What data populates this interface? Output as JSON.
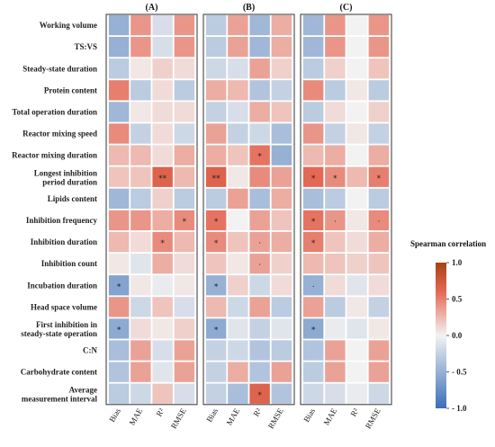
{
  "chart_data": {
    "type": "heatmap",
    "panels": [
      "(A)",
      "(B)",
      "(C)"
    ],
    "rows": [
      [
        "Working volume"
      ],
      [
        "TS:VS"
      ],
      [
        "Steady-state duration"
      ],
      [
        "Protein content"
      ],
      [
        "Total operation duration"
      ],
      [
        "Reactor mixing speed"
      ],
      [
        "Reactor mixing duration"
      ],
      [
        "Longest inhibition",
        "period duration"
      ],
      [
        "Lipids content"
      ],
      [
        "Inhibition frequency"
      ],
      [
        "Inhibition duration"
      ],
      [
        "Inhibition count"
      ],
      [
        "Incubation duration"
      ],
      [
        "Head space volume"
      ],
      [
        "First inhibition in",
        "steady-state operation"
      ],
      [
        "C:N"
      ],
      [
        "Carbohydrate content"
      ],
      [
        "Average",
        "measurement interval"
      ]
    ],
    "columns": [
      "Bias",
      "MAE",
      "R²",
      "RMSE"
    ],
    "values": [
      [
        [
          -0.5,
          0.4,
          -0.15,
          0.4
        ],
        [
          -0.5,
          0.4,
          -0.15,
          0.4
        ],
        [
          -0.3,
          0.05,
          0.15,
          0.1
        ],
        [
          0.5,
          -0.3,
          0.1,
          -0.3
        ],
        [
          -0.45,
          0.05,
          0.1,
          0.1
        ],
        [
          0.45,
          -0.25,
          0.1,
          -0.2
        ],
        [
          0.25,
          0.25,
          0.1,
          0.3
        ],
        [
          0.2,
          0.2,
          0.65,
          0.25
        ],
        [
          -0.45,
          -0.3,
          0.15,
          -0.3
        ],
        [
          0.4,
          0.4,
          0.3,
          0.45
        ],
        [
          0.25,
          0.1,
          0.45,
          0.25
        ],
        [
          0.05,
          -0.1,
          0.3,
          0.1
        ],
        [
          -0.6,
          0.05,
          -0.05,
          0.05
        ],
        [
          0.4,
          -0.2,
          0.2,
          -0.15
        ],
        [
          -0.55,
          0.1,
          0.05,
          0.15
        ],
        [
          -0.4,
          0.35,
          -0.15,
          0.35
        ],
        [
          -0.35,
          0.35,
          -0.1,
          0.35
        ],
        [
          -0.3,
          -0.2,
          0.2,
          -0.15
        ]
      ],
      [
        [
          -0.3,
          0.35,
          -0.45,
          0.3
        ],
        [
          -0.3,
          0.35,
          -0.45,
          0.3
        ],
        [
          -0.2,
          -0.15,
          0.35,
          0.15
        ],
        [
          0.3,
          0.25,
          -0.35,
          -0.25
        ],
        [
          -0.25,
          -0.15,
          0.3,
          0.2
        ],
        [
          0.35,
          -0.25,
          -0.2,
          -0.4
        ],
        [
          0.3,
          0.2,
          0.55,
          -0.5
        ],
        [
          0.65,
          0.05,
          0.45,
          0.35
        ],
        [
          -0.3,
          0.35,
          -0.4,
          0.3
        ],
        [
          0.55,
          0.0,
          0.35,
          0.2
        ],
        [
          0.45,
          0.2,
          0.35,
          0.3
        ],
        [
          0.2,
          0.05,
          0.35,
          0.15
        ],
        [
          -0.5,
          0.15,
          -0.2,
          0.1
        ],
        [
          0.25,
          -0.2,
          0.35,
          -0.3
        ],
        [
          -0.55,
          -0.1,
          -0.25,
          -0.1
        ],
        [
          -0.25,
          -0.2,
          -0.35,
          -0.3
        ],
        [
          -0.25,
          0.3,
          -0.35,
          0.35
        ],
        [
          -0.25,
          -0.4,
          0.65,
          -0.35
        ]
      ],
      [
        [
          -0.45,
          0.4,
          0.0,
          0.4
        ],
        [
          -0.45,
          0.4,
          0.0,
          0.4
        ],
        [
          -0.3,
          0.15,
          0.0,
          0.2
        ],
        [
          0.45,
          -0.3,
          0.05,
          -0.3
        ],
        [
          -0.3,
          0.1,
          0.0,
          0.15
        ],
        [
          0.4,
          -0.25,
          0.05,
          -0.25
        ],
        [
          0.25,
          0.3,
          0.0,
          0.3
        ],
        [
          0.6,
          0.45,
          0.25,
          0.5
        ],
        [
          -0.4,
          -0.3,
          0.0,
          -0.3
        ],
        [
          0.55,
          0.4,
          0.05,
          0.45
        ],
        [
          0.5,
          0.2,
          0.1,
          0.3
        ],
        [
          0.25,
          0.2,
          0.15,
          0.2
        ],
        [
          -0.5,
          0.1,
          -0.1,
          0.1
        ],
        [
          0.35,
          -0.3,
          0.05,
          -0.25
        ],
        [
          -0.55,
          -0.05,
          -0.1,
          0.05
        ],
        [
          -0.35,
          0.35,
          0.0,
          0.35
        ],
        [
          -0.3,
          0.35,
          0.0,
          0.35
        ],
        [
          -0.2,
          -0.15,
          -0.05,
          -0.2
        ]
      ]
    ],
    "annotations": [
      {
        "panel": 0,
        "row": 7,
        "col": 2,
        "text": "**"
      },
      {
        "panel": 0,
        "row": 9,
        "col": 3,
        "text": "*"
      },
      {
        "panel": 0,
        "row": 10,
        "col": 2,
        "text": "*"
      },
      {
        "panel": 0,
        "row": 12,
        "col": 0,
        "text": "*"
      },
      {
        "panel": 0,
        "row": 14,
        "col": 0,
        "text": "*"
      },
      {
        "panel": 1,
        "row": 6,
        "col": 2,
        "text": "*"
      },
      {
        "panel": 1,
        "row": 7,
        "col": 0,
        "text": "**"
      },
      {
        "panel": 1,
        "row": 9,
        "col": 0,
        "text": "*"
      },
      {
        "panel": 1,
        "row": 10,
        "col": 0,
        "text": "*"
      },
      {
        "panel": 1,
        "row": 10,
        "col": 2,
        "text": "·"
      },
      {
        "panel": 1,
        "row": 11,
        "col": 2,
        "text": "·"
      },
      {
        "panel": 1,
        "row": 12,
        "col": 0,
        "text": "*"
      },
      {
        "panel": 1,
        "row": 14,
        "col": 0,
        "text": "*"
      },
      {
        "panel": 1,
        "row": 17,
        "col": 2,
        "text": "*"
      },
      {
        "panel": 2,
        "row": 7,
        "col": 0,
        "text": "*"
      },
      {
        "panel": 2,
        "row": 7,
        "col": 1,
        "text": "*"
      },
      {
        "panel": 2,
        "row": 7,
        "col": 3,
        "text": "*"
      },
      {
        "panel": 2,
        "row": 9,
        "col": 0,
        "text": "*"
      },
      {
        "panel": 2,
        "row": 9,
        "col": 1,
        "text": "·"
      },
      {
        "panel": 2,
        "row": 9,
        "col": 3,
        "text": "·"
      },
      {
        "panel": 2,
        "row": 10,
        "col": 0,
        "text": "*"
      },
      {
        "panel": 2,
        "row": 12,
        "col": 0,
        "text": "·"
      },
      {
        "panel": 2,
        "row": 14,
        "col": 0,
        "text": "*"
      }
    ],
    "colorbar": {
      "title": "Spearman correlation",
      "range": [
        -1.0,
        1.0
      ],
      "ticks": [
        "1.0",
        "0.5",
        "0.0",
        "- 0.5",
        "- 1.0"
      ],
      "tick_values": [
        1.0,
        0.5,
        0.0,
        -0.5,
        -1.0
      ],
      "colors": {
        "low": "#3b6fb6",
        "mid": "#f2f2f2",
        "high": "#a64212"
      }
    }
  }
}
